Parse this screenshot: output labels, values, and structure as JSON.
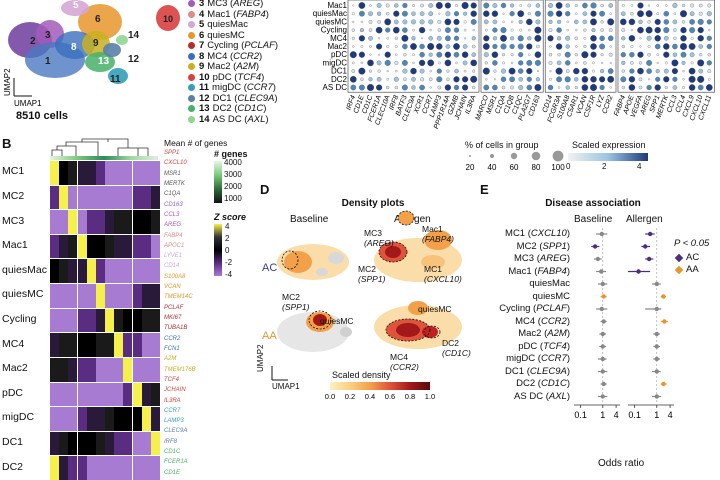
{
  "panelA": {
    "umap_axis_y": "UMAP2",
    "umap_axis_x": "UMAP1",
    "cell_count": "8510 cells",
    "cluster_numbers": [
      "1",
      "2",
      "3",
      "5",
      "6",
      "8",
      "9",
      "10",
      "11",
      "12",
      "13",
      "14"
    ],
    "legend": [
      {
        "num": "3",
        "name": "MC3",
        "gene": "AREG",
        "color": "#a35ab8"
      },
      {
        "num": "4",
        "name": "Mac1",
        "gene": "FABP4",
        "color": "#e08a8a"
      },
      {
        "num": "5",
        "name": "quiesMac",
        "gene": "",
        "color": "#d6a6d6"
      },
      {
        "num": "6",
        "name": "quiesMC",
        "gene": "",
        "color": "#e8962b"
      },
      {
        "num": "7",
        "name": "Cycling",
        "gene": "PCLAF",
        "color": "#b03030"
      },
      {
        "num": "8",
        "name": "MC4",
        "gene": "CCR2",
        "color": "#3a6fbf"
      },
      {
        "num": "9",
        "name": "Mac2",
        "gene": "A2M",
        "color": "#c9b020"
      },
      {
        "num": "10",
        "name": "pDC",
        "gene": "TCF4",
        "color": "#d94040"
      },
      {
        "num": "11",
        "name": "migDC",
        "gene": "CCR7",
        "color": "#33a0b8"
      },
      {
        "num": "12",
        "name": "DC1",
        "gene": "CLEC9A",
        "color": "#5a7fa8"
      },
      {
        "num": "13",
        "name": "DC2",
        "gene": "CD1C",
        "color": "#47b06a"
      },
      {
        "num": "14",
        "name": "AS DC",
        "gene": "AXL",
        "color": "#8fd68f"
      }
    ]
  },
  "panelDot": {
    "rows": [
      "Mac1",
      "quiesMac",
      "quiesMC",
      "Cycling",
      "MC4",
      "Mac2",
      "pDC",
      "migDC",
      "DC1",
      "DC2",
      "AS DC"
    ],
    "genes_group1": [
      "IRF4",
      "CD1E",
      "CD1C",
      "FCER1A",
      "CLEC10A",
      "IRF8",
      "BATF3",
      "CLEC9A",
      "XCR1",
      "CCR7",
      "LAMP3",
      "PPP1R14A",
      "GZMB",
      "JCHAIN",
      "IL3RA"
    ],
    "genes_group2": [
      "MARCO",
      "MSR1",
      "C1QA",
      "C1QB",
      "C1QC",
      "PLA2G7",
      "CD163"
    ],
    "genes_group3": [
      "CD14",
      "FCGR3A",
      "S100A8",
      "C5AR1",
      "VCAN",
      "CSF1R",
      "LYZ",
      "CCR2"
    ],
    "genes_group4": [
      "FABP4",
      "APOE",
      "VEGFA",
      "AREG",
      "SPP1",
      "MERTK",
      "CCL3",
      "CCL4",
      "CXCL9",
      "CXCL10",
      "CXCL11"
    ],
    "size_legend_title": "% of cells in group",
    "size_legend_ticks": [
      "20",
      "40",
      "60",
      "80",
      "100"
    ],
    "color_legend_title": "Scaled expression",
    "color_legend_ticks": [
      "0",
      "2",
      "4"
    ]
  },
  "panelB": {
    "letter": "B",
    "mean_genes_title": "Mean # of genes",
    "n_genes_title": "# genes",
    "n_genes_ticks": [
      "4000",
      "3000",
      "2000",
      "1000"
    ],
    "z_title": "Z score",
    "z_ticks": [
      "4",
      "2",
      "0",
      "-2",
      "-4"
    ],
    "row_groups": [
      "MC1",
      "MC2",
      "MC3",
      "Mac1",
      "quiesMac",
      "quiesMC",
      "Cycling",
      "MC4",
      "Mac2",
      "pDC",
      "migDC",
      "DC1",
      "DC2"
    ],
    "genes": [
      {
        "name": "SPP1",
        "color": "#d94040"
      },
      {
        "name": "CXCL10",
        "color": "#d94040"
      },
      {
        "name": "MSR1",
        "color": "#555"
      },
      {
        "name": "MERTK",
        "color": "#555"
      },
      {
        "name": "C1QA",
        "color": "#555"
      },
      {
        "name": "CD163",
        "color": "#a35ab8"
      },
      {
        "name": "CCL3",
        "color": "#a35ab8"
      },
      {
        "name": "AREG",
        "color": "#a35ab8"
      },
      {
        "name": "FABP4",
        "color": "#e08a8a"
      },
      {
        "name": "APOC1",
        "color": "#e08a8a"
      },
      {
        "name": "LYVE1",
        "color": "#d6a6d6"
      },
      {
        "name": "CD14",
        "color": "#d6a6d6"
      },
      {
        "name": "S100A8",
        "color": "#e8962b"
      },
      {
        "name": "VCAN",
        "color": "#e8962b"
      },
      {
        "name": "TMEM14C",
        "color": "#e8962b"
      },
      {
        "name": "PCLAF",
        "color": "#b03030"
      },
      {
        "name": "MKI67",
        "color": "#b03030"
      },
      {
        "name": "TUBA1B",
        "color": "#b03030"
      },
      {
        "name": "CCR2",
        "color": "#3a6fbf"
      },
      {
        "name": "FCN1",
        "color": "#3a6fbf"
      },
      {
        "name": "A2M",
        "color": "#c9b020"
      },
      {
        "name": "TMEM176B",
        "color": "#c9b020"
      },
      {
        "name": "TCF4",
        "color": "#d94040"
      },
      {
        "name": "JCHAIN",
        "color": "#d94040"
      },
      {
        "name": "IL3RA",
        "color": "#d94040"
      },
      {
        "name": "CCR7",
        "color": "#33a0b8"
      },
      {
        "name": "LAMP3",
        "color": "#33a0b8"
      },
      {
        "name": "CLEC9A",
        "color": "#5a7fa8"
      },
      {
        "name": "IRF8",
        "color": "#5a7fa8"
      },
      {
        "name": "CD1C",
        "color": "#47b06a"
      },
      {
        "name": "FCER1A",
        "color": "#47b06a"
      },
      {
        "name": "CD1E",
        "color": "#47b06a"
      }
    ]
  },
  "panelD": {
    "letter": "D",
    "title": "Density plots",
    "col_baseline": "Baseline",
    "col_allergen": "Allergen",
    "row_ac": "AC",
    "row_aa": "AA",
    "labels": {
      "mc3": "MC3",
      "mc3_gene": "(AREG)",
      "mac1": "Mac1",
      "mac1_gene": "(FABP4)",
      "mc2a": "MC2",
      "mc2a_gene": "(SPP1)",
      "mc2b": "MC2",
      "mc2b_gene": "(SPP1)",
      "mc1": "MC1",
      "mc1_gene": "(CXCL10)",
      "quiesmc_a": "quiesMC",
      "quiesmc_b": "quiesMC",
      "mc4": "MC4",
      "mc4_gene": "(CCR2)",
      "dc2": "DC2",
      "dc2_gene": "(CD1C)"
    },
    "axis_y": "UMAP2",
    "axis_x": "UMAP1",
    "scale_title": "Scaled density",
    "scale_ticks": [
      "0.0",
      "0.2",
      "0.4",
      "0.6",
      "0.8",
      "1.0"
    ]
  },
  "panelE": {
    "letter": "E",
    "title": "Disease association",
    "col_baseline": "Baseline",
    "col_allergen": "Allergen",
    "legend_p": "P < 0.05",
    "legend_ac": "AC",
    "legend_aa": "AA",
    "xlabel": "Odds ratio",
    "ticks_baseline": [
      "0.1",
      "1",
      "4"
    ],
    "ticks_allergen": [
      "0.1",
      "1",
      "4"
    ]
  },
  "chart_data": {
    "type": "scatter",
    "title": "Disease association",
    "xlabel": "Odds ratio",
    "x_scale": "log",
    "categories": [
      {
        "name": "MC1",
        "gene": "CXCL10"
      },
      {
        "name": "MC2",
        "gene": "SPP1"
      },
      {
        "name": "MC3",
        "gene": "AREG"
      },
      {
        "name": "Mac1",
        "gene": "FABP4"
      },
      {
        "name": "quiesMac",
        "gene": ""
      },
      {
        "name": "quiesMC",
        "gene": ""
      },
      {
        "name": "Cycling",
        "gene": "PCLAF"
      },
      {
        "name": "MC4",
        "gene": "CCR2"
      },
      {
        "name": "Mac2",
        "gene": "A2M"
      },
      {
        "name": "pDC",
        "gene": "TCF4"
      },
      {
        "name": "migDC",
        "gene": "CCR7"
      },
      {
        "name": "DC1",
        "gene": "CLEC9A"
      },
      {
        "name": "DC2",
        "gene": "CD1C"
      },
      {
        "name": "AS DC",
        "gene": "AXL"
      }
    ],
    "series": [
      {
        "name": "Baseline",
        "color_sig": "#4b2e83",
        "values": [
          0.9,
          0.45,
          0.6,
          0.85,
          1.0,
          1.1,
          0.9,
          1.1,
          1.0,
          1.0,
          1.0,
          1.0,
          1.1,
          1.0
        ],
        "low": [
          0.5,
          0.3,
          0.4,
          0.5,
          0.6,
          0.8,
          0.5,
          0.8,
          0.7,
          0.7,
          0.6,
          0.6,
          0.8,
          0.6
        ],
        "high": [
          1.6,
          0.7,
          0.9,
          1.4,
          1.6,
          1.5,
          1.6,
          1.5,
          1.4,
          1.4,
          1.5,
          1.6,
          1.5,
          1.6
        ],
        "significant": [
          false,
          "AC",
          false,
          false,
          false,
          "AA",
          false,
          false,
          false,
          false,
          false,
          false,
          false,
          false
        ]
      },
      {
        "name": "Allergen",
        "color_sig": "#4b2e83",
        "values": [
          0.5,
          0.3,
          0.45,
          0.15,
          1.0,
          2.0,
          1.0,
          2.2,
          1.0,
          1.0,
          1.0,
          1.0,
          2.0,
          1.0
        ],
        "low": [
          0.3,
          0.2,
          0.3,
          0.05,
          0.6,
          1.5,
          0.3,
          1.5,
          0.7,
          0.7,
          0.7,
          0.6,
          1.5,
          0.6
        ],
        "high": [
          0.8,
          0.5,
          0.7,
          0.5,
          1.5,
          2.6,
          1.6,
          3.2,
          1.4,
          1.4,
          1.4,
          1.5,
          2.8,
          1.6
        ],
        "significant": [
          "AC",
          "AC",
          "AC",
          "AC",
          false,
          "AA",
          false,
          "AA",
          false,
          false,
          false,
          false,
          "AA",
          false
        ]
      }
    ]
  }
}
